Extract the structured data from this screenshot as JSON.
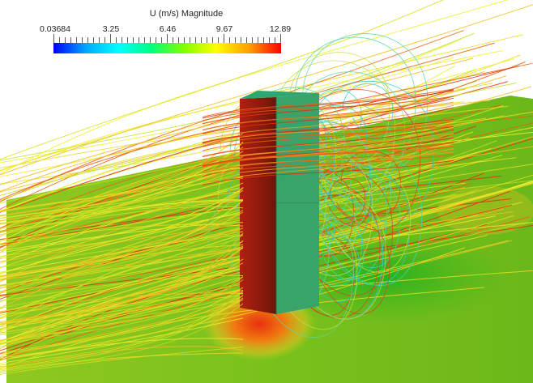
{
  "legend": {
    "title": "U (m/s) Magnitude",
    "ticks": [
      "0.03684",
      "3.25",
      "6.46",
      "9.67",
      "12.89"
    ],
    "colormap": [
      "#0000ff",
      "#00a8ff",
      "#00ffff",
      "#00ff80",
      "#80ff00",
      "#ffff00",
      "#ffa000",
      "#ff0000"
    ]
  },
  "scene": {
    "ground_color": "#6aba1a",
    "building_front_color": "#3aa868",
    "building_side_color": "#9a1e10",
    "building_top_color": "#2ea670"
  }
}
